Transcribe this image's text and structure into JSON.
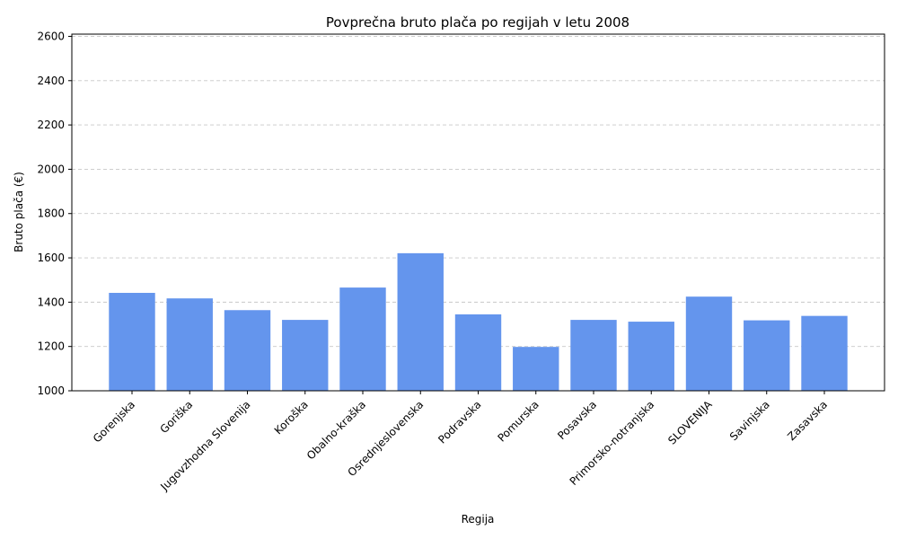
{
  "chart_data": {
    "type": "bar",
    "title": "Povprečna bruto plača po regijah v letu 2008",
    "xlabel": "Regija",
    "ylabel": "Bruto plača (€)",
    "ylim": [
      1000,
      2610
    ],
    "yticks": [
      1000,
      1200,
      1400,
      1600,
      1800,
      2000,
      2200,
      2400,
      2600
    ],
    "grid": "y",
    "bar_color": "#6495ED",
    "categories": [
      "Gorenjska",
      "Goriška",
      "Jugovzhodna Slovenija",
      "Koroška",
      "Obalno-kraška",
      "Osrednjeslovenska",
      "Podravska",
      "Pomurska",
      "Posavska",
      "Primorsko-notranjska",
      "SLOVENIJA",
      "Savinjska",
      "Zasavska"
    ],
    "values": [
      1442,
      1417,
      1364,
      1320,
      1466,
      1621,
      1345,
      1198,
      1320,
      1312,
      1425,
      1318,
      1338
    ]
  }
}
